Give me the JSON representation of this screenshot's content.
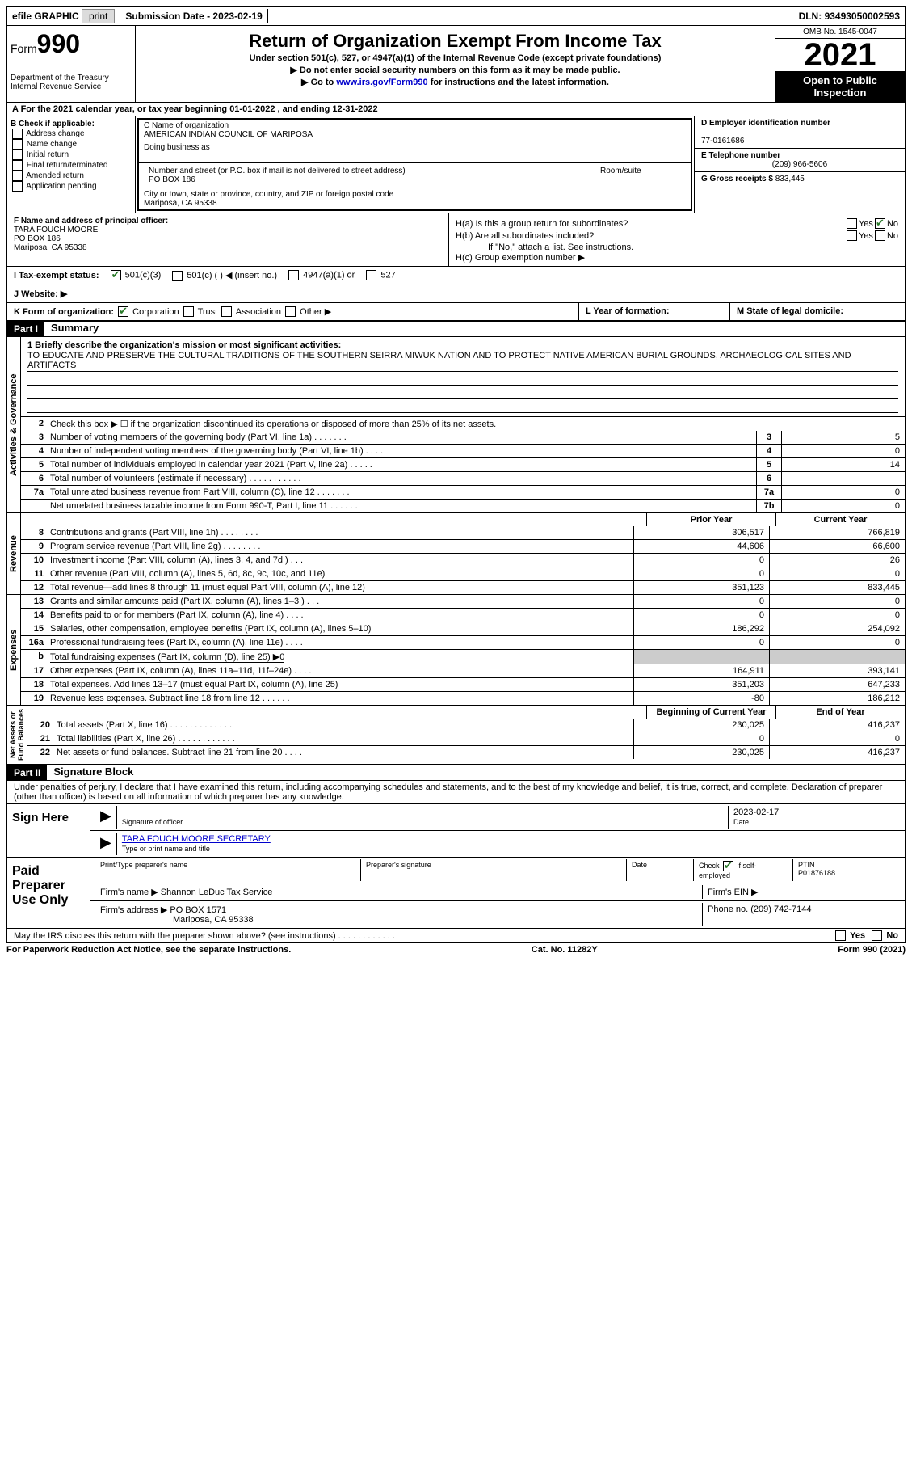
{
  "topbar": {
    "efile": "efile GRAPHIC",
    "print_btn": "print",
    "sub_date_lbl": "Submission Date - ",
    "sub_date": "2023-02-19",
    "dln_lbl": "DLN: ",
    "dln": "93493050002593"
  },
  "header": {
    "form_word": "Form",
    "form_num": "990",
    "dept": "Department of the Treasury\nInternal Revenue Service",
    "title": "Return of Organization Exempt From Income Tax",
    "sub": "Under section 501(c), 527, or 4947(a)(1) of the Internal Revenue Code (except private foundations)",
    "line1": "▶ Do not enter social security numbers on this form as it may be made public.",
    "line2_pre": "▶ Go to ",
    "line2_link": "www.irs.gov/Form990",
    "line2_post": " for instructions and the latest information.",
    "omb": "OMB No. 1545-0047",
    "year": "2021",
    "inspect": "Open to Public Inspection"
  },
  "rowA": "A  For the 2021 calendar year, or tax year beginning 01-01-2022    , and ending 12-31-2022",
  "colB": {
    "hdr": "B Check if applicable:",
    "items": [
      "Address change",
      "Name change",
      "Initial return",
      "Final return/terminated",
      "Amended return",
      "Application pending"
    ]
  },
  "colC": {
    "name_lbl": "C Name of organization",
    "name": "AMERICAN INDIAN COUNCIL OF MARIPOSA",
    "dba_lbl": "Doing business as",
    "dba": "",
    "street_lbl": "Number and street (or P.O. box if mail is not delivered to street address)",
    "room_lbl": "Room/suite",
    "street": "PO BOX 186",
    "city_lbl": "City or town, state or province, country, and ZIP or foreign postal code",
    "city": "Mariposa, CA  95338"
  },
  "colD": {
    "ein_lbl": "D Employer identification number",
    "ein": "77-0161686",
    "tel_lbl": "E Telephone number",
    "tel": "(209) 966-5606",
    "gross_lbl": "G Gross receipts $ ",
    "gross": "833,445"
  },
  "colF": {
    "lbl": "F  Name and address of principal officer:",
    "name": "TARA FOUCH MOORE",
    "addr1": "PO BOX 186",
    "addr2": "Mariposa, CA  95338"
  },
  "colH": {
    "ha": "H(a)  Is this a group return for subordinates?",
    "hb": "H(b)  Are all subordinates included?",
    "hb_note": "If \"No,\" attach a list. See instructions.",
    "hc": "H(c)  Group exemption number ▶",
    "yes": "Yes",
    "no": "No"
  },
  "rowI": {
    "lbl": "I   Tax-exempt status:",
    "o1": "501(c)(3)",
    "o2": "501(c) (  ) ◀ (insert no.)",
    "o3": "4947(a)(1) or",
    "o4": "527"
  },
  "rowJ": "J   Website: ▶",
  "rowK": {
    "k": "K Form of organization:",
    "corp": "Corporation",
    "trust": "Trust",
    "assoc": "Association",
    "other": "Other ▶",
    "l": "L Year of formation:",
    "m": "M State of legal domicile:"
  },
  "part1": {
    "num": "Part I",
    "title": "Summary",
    "l1_lbl": "1   Briefly describe the organization's mission or most significant activities:",
    "l1_txt": "TO EDUCATE AND PRESERVE THE CULTURAL TRADITIONS OF THE SOUTHERN SEIRRA MIWUK NATION AND TO PROTECT NATIVE AMERICAN BURIAL GROUNDS, ARCHAEOLOGICAL SITES AND ARTIFACTS",
    "l2": "Check this box ▶ ☐  if the organization discontinued its operations or disposed of more than 25% of its net assets.",
    "vlabels": {
      "ag": "Activities & Governance",
      "rev": "Revenue",
      "exp": "Expenses",
      "na": "Net Assets or\nFund Balances"
    },
    "hdrs": {
      "prior": "Prior Year",
      "current": "Current Year",
      "boy": "Beginning of Current Year",
      "eoy": "End of Year"
    },
    "lines_ag": [
      {
        "n": "3",
        "t": "Number of voting members of the governing body (Part VI, line 1a)   .    .    .    .    .    .    .",
        "b": "3",
        "v": "5"
      },
      {
        "n": "4",
        "t": "Number of independent voting members of the governing body (Part VI, line 1b)   .    .    .    .",
        "b": "4",
        "v": "0"
      },
      {
        "n": "5",
        "t": "Total number of individuals employed in calendar year 2021 (Part V, line 2a)   .    .    .    .    .",
        "b": "5",
        "v": "14"
      },
      {
        "n": "6",
        "t": "Total number of volunteers (estimate if necessary)    .    .    .    .    .    .    .    .    .    .    .",
        "b": "6",
        "v": ""
      },
      {
        "n": "7a",
        "t": "Total unrelated business revenue from Part VIII, column (C), line 12    .    .    .    .    .    .    .",
        "b": "7a",
        "v": "0"
      },
      {
        "n": "",
        "t": "Net unrelated business taxable income from Form 990-T, Part I, line 11   .    .    .    .    .    .",
        "b": "7b",
        "v": "0"
      }
    ],
    "lines_rev": [
      {
        "n": "8",
        "t": "Contributions and grants (Part VIII, line 1h)   .    .    .    .    .    .    .    .",
        "p": "306,517",
        "c": "766,819"
      },
      {
        "n": "9",
        "t": "Program service revenue (Part VIII, line 2g)   .    .    .    .    .    .    .    .",
        "p": "44,606",
        "c": "66,600"
      },
      {
        "n": "10",
        "t": "Investment income (Part VIII, column (A), lines 3, 4, and 7d )    .    .    .",
        "p": "0",
        "c": "26"
      },
      {
        "n": "11",
        "t": "Other revenue (Part VIII, column (A), lines 5, 6d, 8c, 9c, 10c, and 11e)",
        "p": "0",
        "c": "0"
      },
      {
        "n": "12",
        "t": "Total revenue—add lines 8 through 11 (must equal Part VIII, column (A), line 12)",
        "p": "351,123",
        "c": "833,445"
      }
    ],
    "lines_exp": [
      {
        "n": "13",
        "t": "Grants and similar amounts paid (Part IX, column (A), lines 1–3 )   .    .    .",
        "p": "0",
        "c": "0"
      },
      {
        "n": "14",
        "t": "Benefits paid to or for members (Part IX, column (A), line 4)   .    .    .    .",
        "p": "0",
        "c": "0"
      },
      {
        "n": "15",
        "t": "Salaries, other compensation, employee benefits (Part IX, column (A), lines 5–10)",
        "p": "186,292",
        "c": "254,092"
      },
      {
        "n": "16a",
        "t": "Professional fundraising fees (Part IX, column (A), line 11e)    .    .    .    .",
        "p": "0",
        "c": "0"
      },
      {
        "n": "b",
        "t": "Total fundraising expenses (Part IX, column (D), line 25) ▶0",
        "p": "",
        "c": "",
        "shade": true,
        "under": true
      },
      {
        "n": "17",
        "t": "Other expenses (Part IX, column (A), lines 11a–11d, 11f–24e)    .    .    .    .",
        "p": "164,911",
        "c": "393,141"
      },
      {
        "n": "18",
        "t": "Total expenses. Add lines 13–17 (must equal Part IX, column (A), line 25)",
        "p": "351,203",
        "c": "647,233"
      },
      {
        "n": "19",
        "t": "Revenue less expenses. Subtract line 18 from line 12   .    .    .    .    .    .",
        "p": "-80",
        "c": "186,212"
      }
    ],
    "lines_na": [
      {
        "n": "20",
        "t": "Total assets (Part X, line 16)  .    .    .    .    .    .    .    .    .    .    .    .    .",
        "p": "230,025",
        "c": "416,237"
      },
      {
        "n": "21",
        "t": "Total liabilities (Part X, line 26)   .    .    .    .    .    .    .    .    .    .    .    .",
        "p": "0",
        "c": "0"
      },
      {
        "n": "22",
        "t": "Net assets or fund balances. Subtract line 21 from line 20   .    .    .    .",
        "p": "230,025",
        "c": "416,237"
      }
    ]
  },
  "part2": {
    "num": "Part II",
    "title": "Signature Block",
    "decl": "Under penalties of perjury, I declare that I have examined this return, including accompanying schedules and statements, and to the best of my knowledge and belief, it is true, correct, and complete. Declaration of preparer (other than officer) is based on all information of which preparer has any knowledge.",
    "sign_here": "Sign Here",
    "sig_officer": "Signature of officer",
    "sig_date": "2023-02-17",
    "date_lbl": "Date",
    "officer_name": "TARA FOUCH MOORE  SECRETARY",
    "type_name": "Type or print name and title",
    "paid": "Paid Preparer Use Only",
    "prep_name_lbl": "Print/Type preparer's name",
    "prep_sig_lbl": "Preparer's signature",
    "check_lbl_pre": "Check ",
    "check_lbl_post": " if self-employed",
    "ptin_lbl": "PTIN",
    "ptin": "P01876188",
    "firm_name_lbl": "Firm's name    ▶ ",
    "firm_name": "Shannon LeDuc Tax Service",
    "firm_ein_lbl": "Firm's EIN ▶",
    "firm_addr_lbl": "Firm's address ▶ ",
    "firm_addr1": "PO BOX 1571",
    "firm_addr2": "Mariposa, CA  95338",
    "phone_lbl": "Phone no. ",
    "phone": "(209) 742-7144"
  },
  "footer": {
    "discuss": "May the IRS discuss this return with the preparer shown above? (see instructions)    .    .    .    .    .    .    .    .    .    .    .    .",
    "pra": "For Paperwork Reduction Act Notice, see the separate instructions.",
    "cat": "Cat. No. 11282Y",
    "form": "Form 990 (2021)",
    "yes": "Yes",
    "no": "No"
  }
}
